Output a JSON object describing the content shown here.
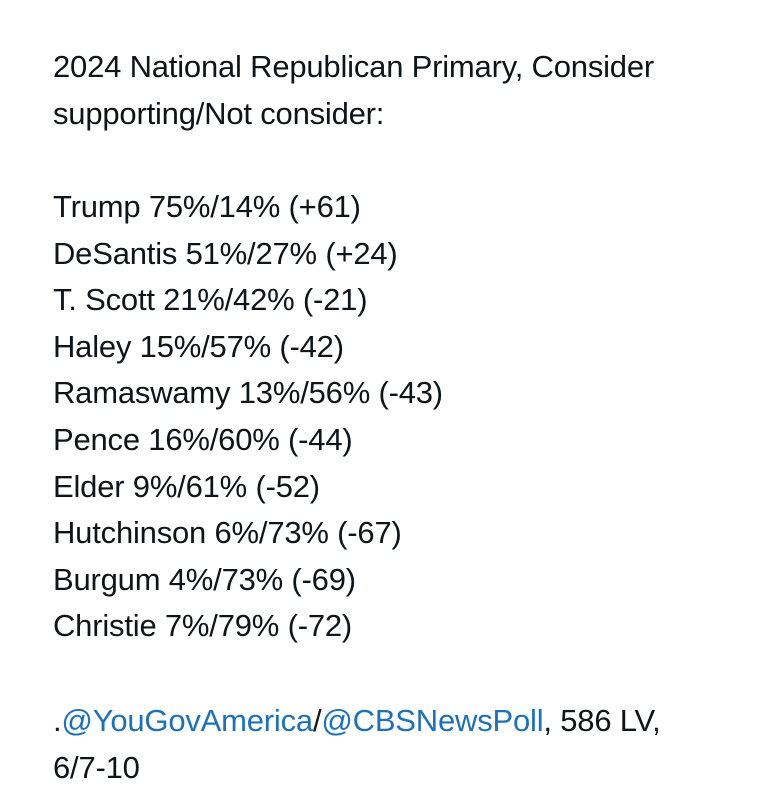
{
  "post": {
    "title_line_1": "2024 National Republican Primary, Consider",
    "title_line_2": "supporting/Not consider:",
    "results": [
      "Trump 75%/14% (+61)",
      "DeSantis 51%/27% (+24)",
      "T. Scott 21%/42% (-21)",
      "Haley 15%/57% (-42)",
      "Ramaswamy 13%/56% (-43)",
      "Pence 16%/60% (-44)",
      "Elder 9%/61% (-52)",
      "Hutchinson 6%/73% (-67)",
      "Burgum 4%/73% (-69)",
      "Christie 7%/79% (-72)"
    ],
    "source": {
      "prefix": ".",
      "mention_1": "@YouGovAmerica",
      "separator": "/",
      "mention_2": "@CBSNewsPoll",
      "suffix": ", 586 LV,",
      "date": "6/7-10"
    }
  },
  "colors": {
    "text": "#0f1419",
    "link": "#1d71b8",
    "background": "#ffffff"
  }
}
